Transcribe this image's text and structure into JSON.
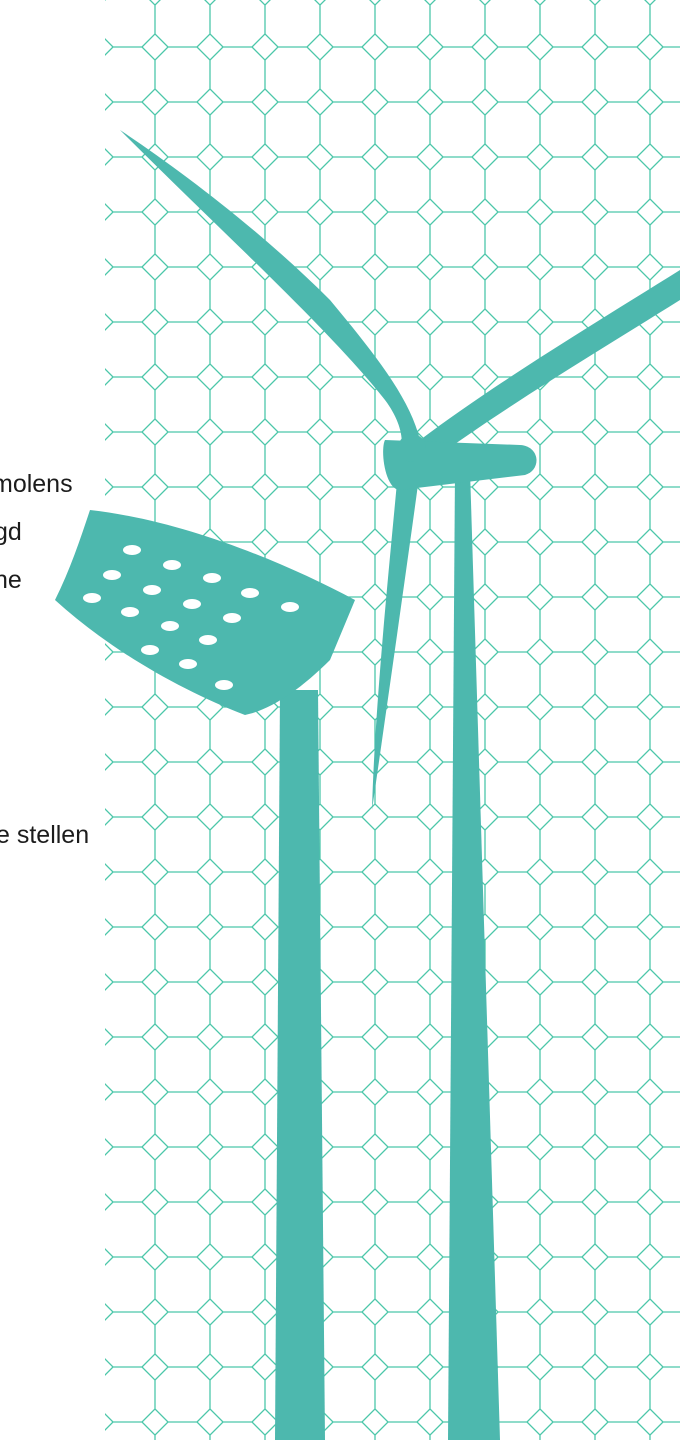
{
  "text_lines": [
    "molens",
    "gd",
    "ne",
    "e stellen"
  ]
}
